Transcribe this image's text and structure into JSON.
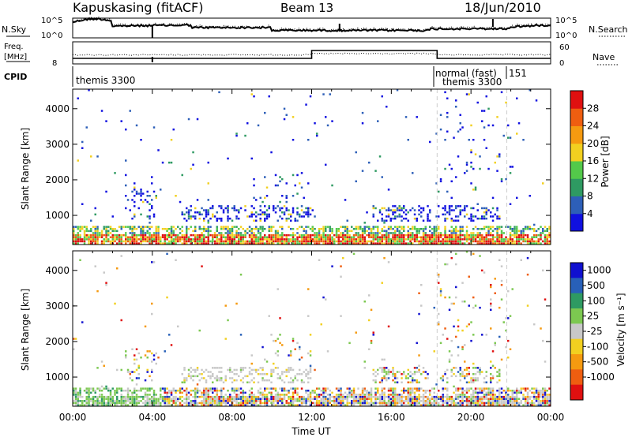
{
  "header": {
    "station": "Kapuskasing (fitACF)",
    "beam": "Beam 13",
    "date": "18/Jun/2010"
  },
  "panels": {
    "noise": {
      "left_label": "N.Sky",
      "right_label": "N.Search",
      "left_ticks": [
        "10^5",
        "10^0"
      ],
      "right_ticks": [
        "10^5",
        "10^0"
      ]
    },
    "freq": {
      "left_label_1": "Freq.",
      "left_label_2": "[MHz]",
      "right_label": "Nave",
      "left_ticks": [
        "8"
      ],
      "right_ticks": [
        "60",
        "0"
      ]
    },
    "cpid": {
      "label": "CPID",
      "segments": [
        "themis 3300",
        "normal (fast)",
        "themis 3300",
        "151"
      ]
    }
  },
  "chart_data": [
    {
      "type": "heatmap",
      "name": "power",
      "ylabel": "Slant Range [km]",
      "y_ticks": [
        1000,
        2000,
        3000,
        4000
      ],
      "ylim": [
        180,
        4550
      ],
      "xlim_hours": [
        0,
        24
      ],
      "colorbar": {
        "label": "Power [dB]",
        "ticks": [
          4,
          8,
          12,
          16,
          20,
          24,
          28
        ],
        "colors": [
          "#1010e0",
          "#2d5fb8",
          "#2e9a62",
          "#53c94a",
          "#f2d020",
          "#f59a10",
          "#ef5e10",
          "#e01010"
        ]
      }
    },
    {
      "type": "heatmap",
      "name": "velocity",
      "ylabel": "Slant Range [km]",
      "y_ticks": [
        1000,
        2000,
        3000,
        4000
      ],
      "ylim": [
        180,
        4550
      ],
      "xlim_hours": [
        0,
        24
      ],
      "colorbar": {
        "label": "Velocity [m s⁻¹]",
        "ticks": [
          "1000",
          "500",
          "100",
          "25",
          "-25",
          "-100",
          "-500",
          "-1000"
        ],
        "colors": [
          "#1010d0",
          "#2860b8",
          "#2e9a62",
          "#7cc850",
          "#c8c8c8",
          "#f2d020",
          "#f59a10",
          "#ef5e10",
          "#e01010"
        ]
      }
    }
  ],
  "x_axis": {
    "label": "Time UT",
    "ticks": [
      "00:00",
      "04:00",
      "08:00",
      "12:00",
      "16:00",
      "20:00",
      "00:00"
    ]
  }
}
